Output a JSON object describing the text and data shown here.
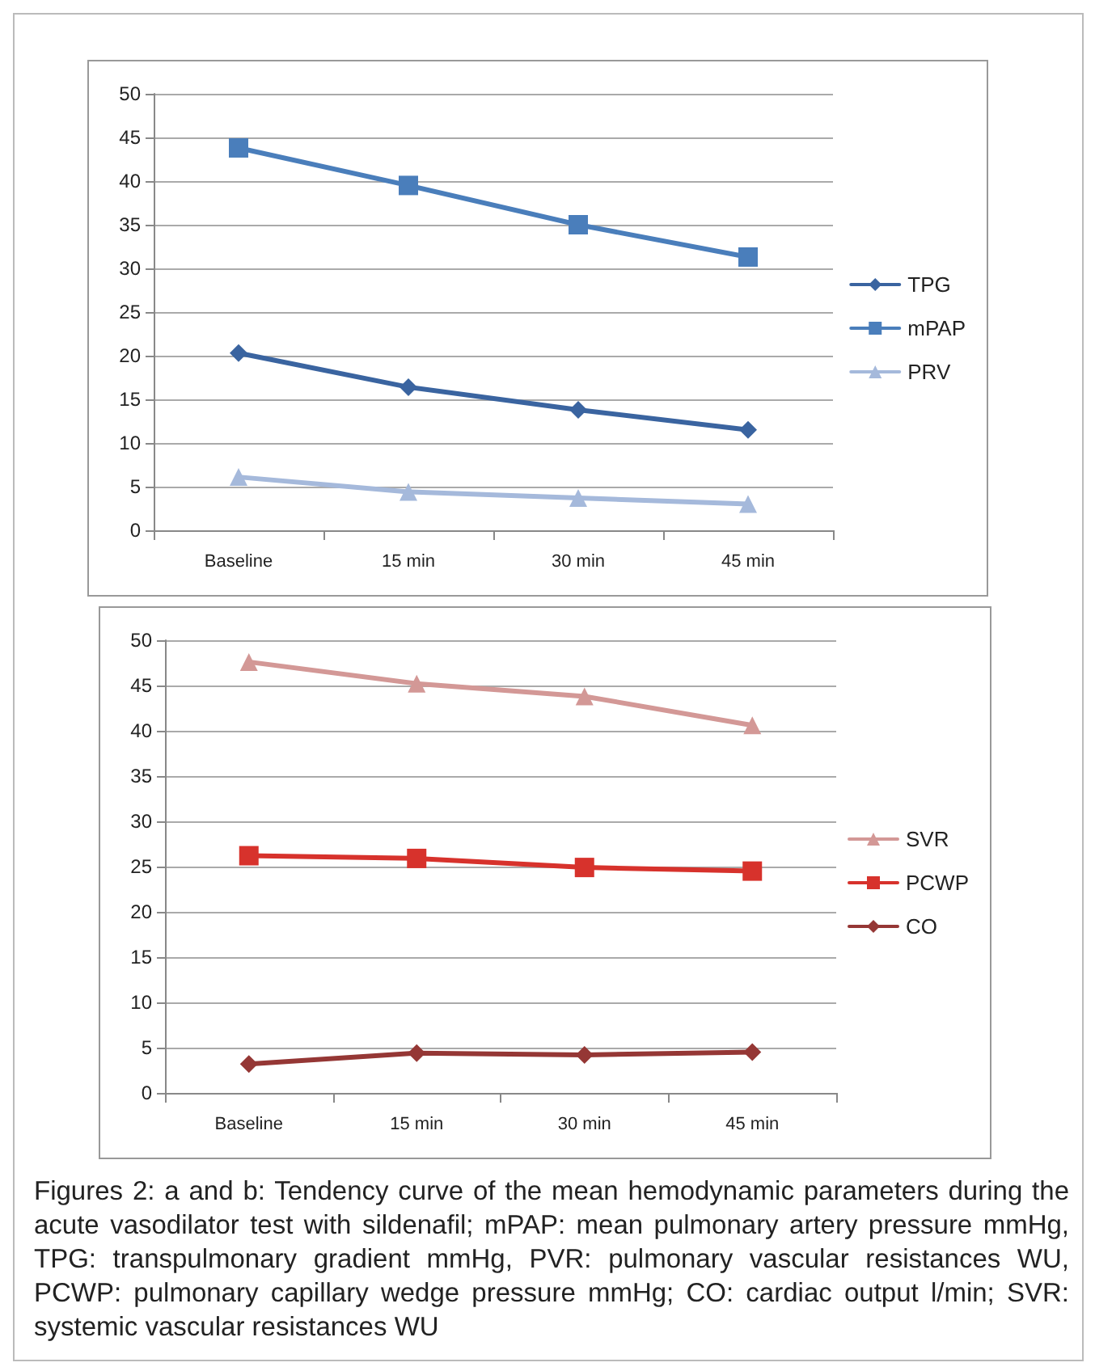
{
  "chart_data": [
    {
      "type": "line",
      "categories": [
        "Baseline",
        "15 min",
        "30 min",
        "45 min"
      ],
      "ylim": [
        0,
        50
      ],
      "yticks": [
        0,
        5,
        10,
        15,
        20,
        25,
        30,
        35,
        40,
        45,
        50
      ],
      "grid": "y",
      "legend": "right",
      "series": [
        {
          "name": "TPG",
          "color": "#3a64a0",
          "marker": "diamond",
          "values": [
            20.3,
            16.4,
            13.8,
            11.5
          ]
        },
        {
          "name": "mPAP",
          "color": "#4a7ebb",
          "marker": "square",
          "values": [
            43.8,
            39.5,
            35.0,
            31.3
          ]
        },
        {
          "name": "PRV",
          "color": "#a5b9db",
          "marker": "triangle",
          "values": [
            6.1,
            4.4,
            3.7,
            3.0
          ]
        }
      ]
    },
    {
      "type": "line",
      "categories": [
        "Baseline",
        "15 min",
        "30 min",
        "45 min"
      ],
      "ylim": [
        0,
        50
      ],
      "yticks": [
        0,
        5,
        10,
        15,
        20,
        25,
        30,
        35,
        40,
        45,
        50
      ],
      "grid": "y",
      "legend": "right",
      "annotations": [
        "Figures 2: a and b: Tendency curve of the mean hemodynamic parameters during the acute vasodilator test with sildenafil; mPAP: mean pulmonary artery pressure mmHg, TPG: transpulmonary gradient mmHg, PVR: pulmonary vascular resistances WU, PCWP: pulmonary capillary wedge pressure mmHg; CO: cardiac output l/min; SVR: systemic vascular resistances WU"
      ],
      "series": [
        {
          "name": "SVR",
          "color": "#d39896",
          "marker": "triangle",
          "values": [
            47.6,
            45.2,
            43.8,
            40.6
          ]
        },
        {
          "name": "PCWP",
          "color": "#d7322c",
          "marker": "square",
          "values": [
            26.2,
            25.9,
            24.9,
            24.5
          ]
        },
        {
          "name": "CO",
          "color": "#953735",
          "marker": "diamond",
          "values": [
            3.2,
            4.4,
            4.2,
            4.5
          ]
        }
      ]
    }
  ]
}
